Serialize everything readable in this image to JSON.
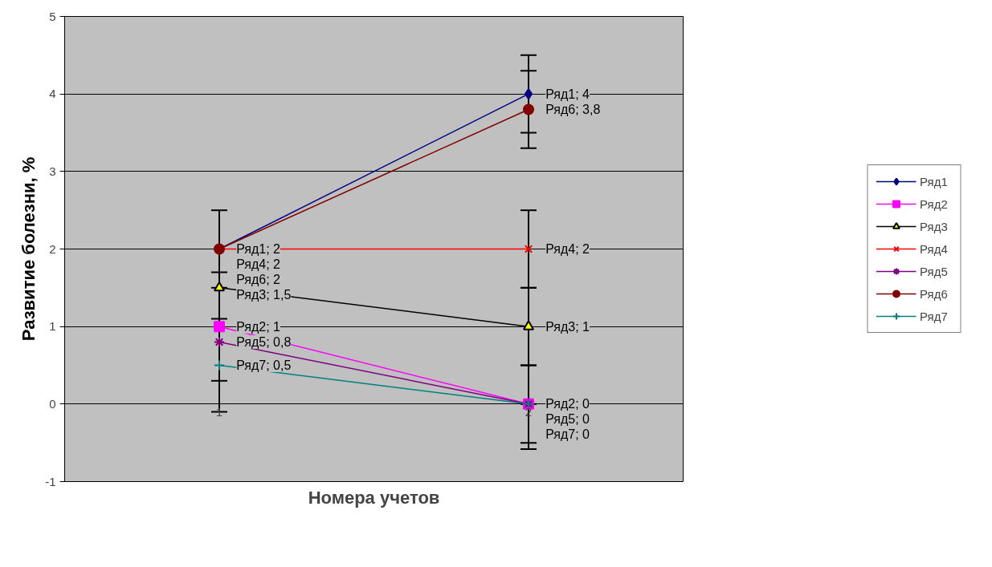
{
  "chart_data": {
    "type": "line",
    "xlabel": "Номера учетов",
    "ylabel": "Развитие болезни, %",
    "categories": [
      "1",
      "2"
    ],
    "series": [
      {
        "name": "Ряд1",
        "color": "#000080",
        "marker": "diamond",
        "values": [
          2,
          4
        ],
        "errors": [
          0.5,
          0.5
        ],
        "value_labels": [
          "Ряд1; 2",
          "Ряд1; 4"
        ]
      },
      {
        "name": "Ряд2",
        "color": "#ff00ff",
        "marker": "square",
        "values": [
          1,
          0
        ],
        "errors": [
          0.7,
          0.5
        ],
        "value_labels": [
          "Ряд2; 1",
          "Ряд2; 0"
        ]
      },
      {
        "name": "Ряд3",
        "color": "#000000",
        "marker": "triangle",
        "values": [
          1.5,
          1
        ],
        "errors": [
          null,
          0.5
        ],
        "value_labels": [
          "Ряд3; 1,5",
          "Ряд3; 1"
        ]
      },
      {
        "name": "Ряд4",
        "color": "#ff0000",
        "marker": "cross",
        "values": [
          2,
          2
        ],
        "errors": [
          null,
          0.5
        ],
        "value_labels": [
          "Ряд4; 2",
          "Ряд4; 2"
        ]
      },
      {
        "name": "Ряд5",
        "color": "#800080",
        "marker": "cross",
        "values": [
          0.8,
          0
        ],
        "errors": [
          null,
          [
            -0.58,
            0
          ]
        ],
        "value_labels": [
          "Ряд5; 0,8",
          "Ряд5; 0"
        ]
      },
      {
        "name": "Ряд6",
        "color": "#800000",
        "marker": "circle",
        "values": [
          2,
          3.8
        ],
        "errors": [
          null,
          0.5
        ],
        "value_labels": [
          "Ряд6; 2",
          "Ряд6; 3,8"
        ]
      },
      {
        "name": "Ряд7",
        "color": "#008080",
        "marker": "cross",
        "values": [
          0.5,
          0
        ],
        "errors": [
          0.6,
          null
        ],
        "value_labels": [
          "Ряд7; 0,5",
          "Ряд7; 0"
        ]
      }
    ],
    "ylim": [
      -1,
      5
    ],
    "yticks": [
      -1,
      0,
      1,
      2,
      3,
      4,
      5
    ],
    "grid": "y",
    "legend": "right"
  }
}
